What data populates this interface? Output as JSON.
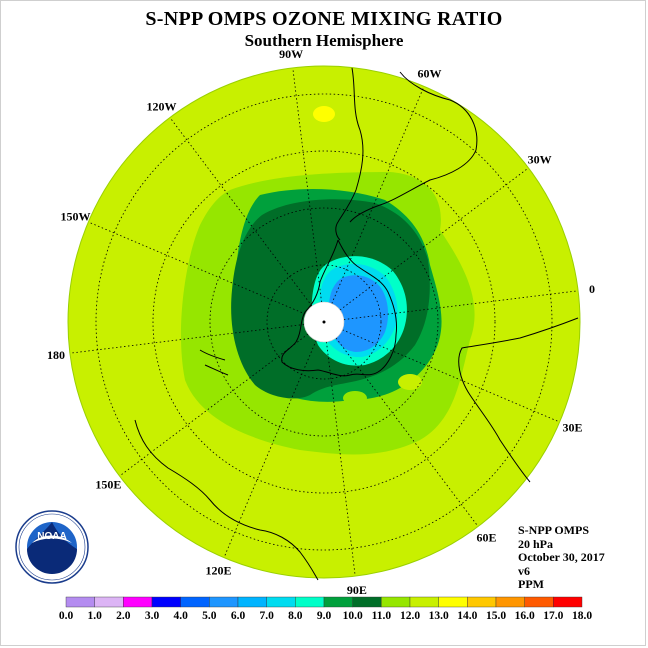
{
  "title": "S-NPP OMPS OZONE MIXING RATIO",
  "subtitle": "Southern Hemisphere",
  "longitude_labels": [
    {
      "text": "90W",
      "lon": -90
    },
    {
      "text": "60W",
      "lon": -60
    },
    {
      "text": "30W",
      "lon": -30
    },
    {
      "text": "0",
      "lon": 0
    },
    {
      "text": "30E",
      "lon": 30
    },
    {
      "text": "60E",
      "lon": 60
    },
    {
      "text": "90E",
      "lon": 90
    },
    {
      "text": "120E",
      "lon": 120
    },
    {
      "text": "150E",
      "lon": 150
    },
    {
      "text": "180",
      "lon": 180
    },
    {
      "text": "150W",
      "lon": -150
    },
    {
      "text": "120W",
      "lon": -120
    }
  ],
  "info": {
    "instrument": "S-NPP OMPS",
    "level": "20 hPa",
    "date": "October 30, 2017",
    "version": "v6",
    "units": "PPM"
  },
  "logo": {
    "text": "NOAA",
    "ring_text": "NATIONAL OCEANIC AND ATMOSPHERIC ADMINISTRATION · U.S. DEPARTMENT OF COMMERCE"
  },
  "colorbar": {
    "labels": [
      "0.0",
      "1.0",
      "2.0",
      "3.0",
      "4.0",
      "5.0",
      "6.0",
      "7.0",
      "8.0",
      "9.0",
      "10.0",
      "11.0",
      "12.0",
      "13.0",
      "14.0",
      "15.0",
      "16.0",
      "17.0",
      "18.0"
    ],
    "colors": [
      "#b48cf0",
      "#dcb4f5",
      "#ff00ff",
      "#0000ff",
      "#0064ff",
      "#1e96ff",
      "#00b4ff",
      "#00dcf0",
      "#00ffc8",
      "#00a03c",
      "#006e28",
      "#96e600",
      "#c8f000",
      "#ffff00",
      "#ffc800",
      "#ff9600",
      "#ff5a00",
      "#ff0000",
      "#8b5a32"
    ]
  },
  "colors": {
    "background_level": "#c8f000",
    "level_11": "#96e600",
    "level_10": "#00a03c",
    "level_9": "#006e28"
  }
}
